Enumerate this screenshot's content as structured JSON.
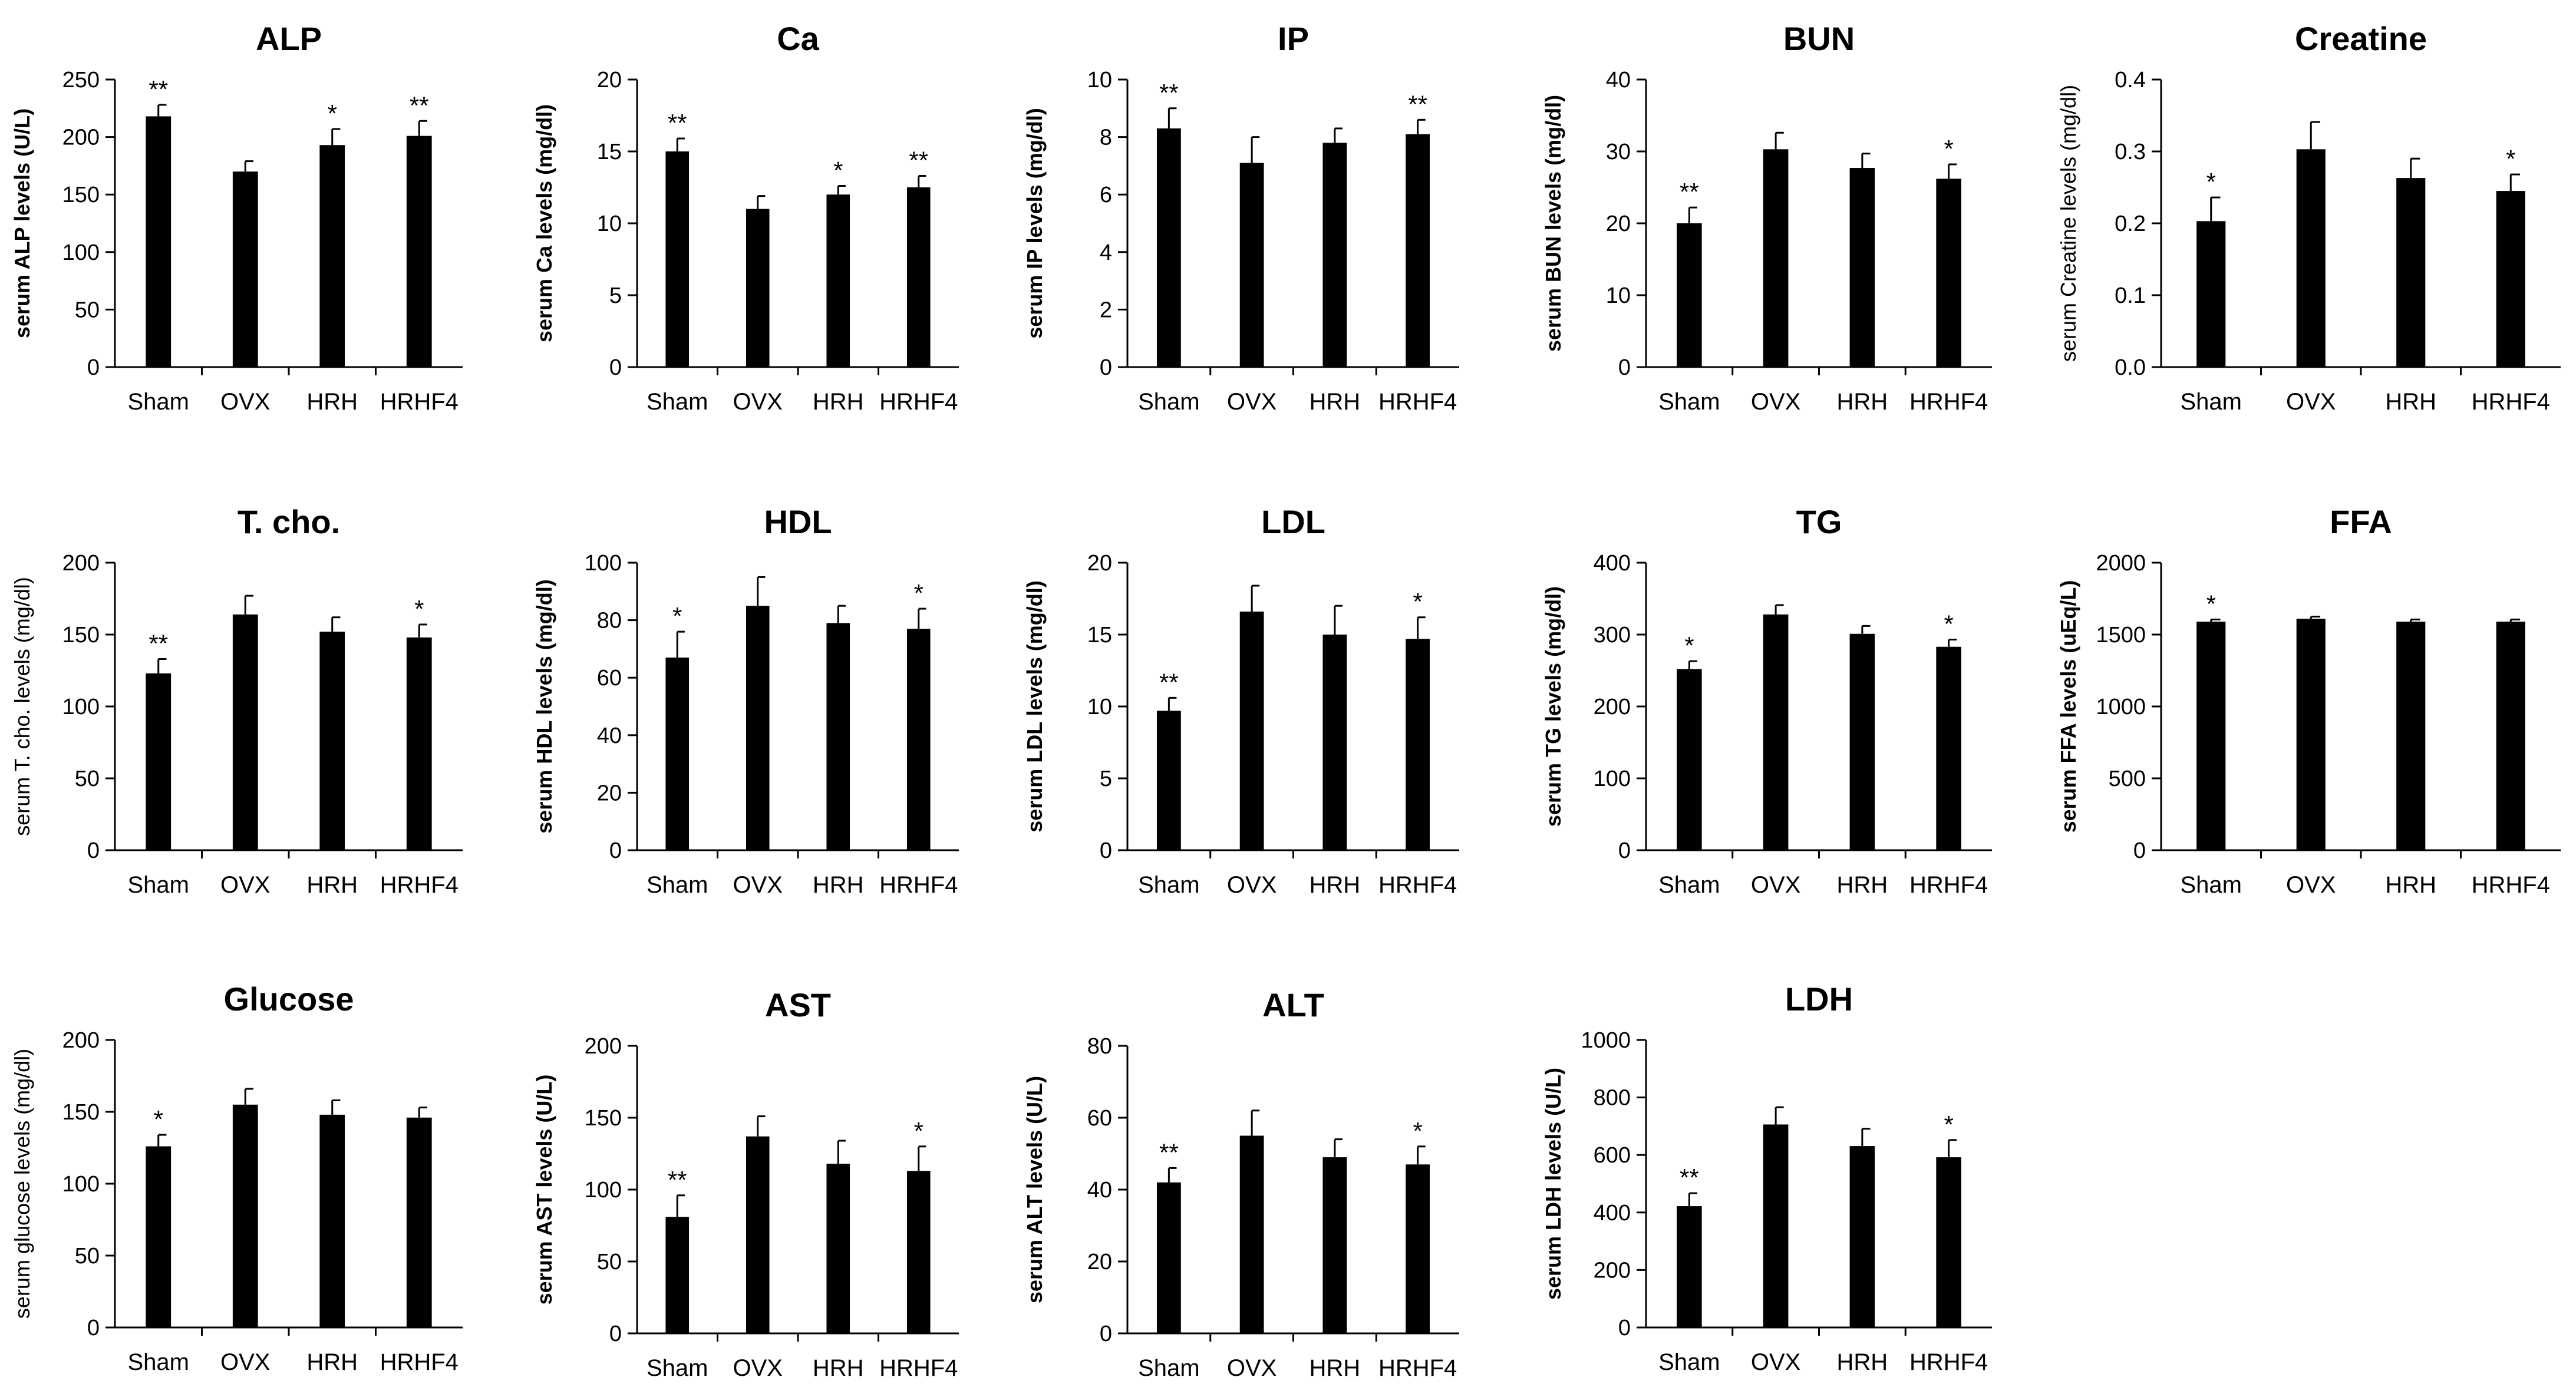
{
  "chart_data": [
    {
      "type": "bar",
      "title": "ALP",
      "ylabel": "serum ALP levels (U/L)",
      "categories": [
        "Sham",
        "OVX",
        "HRH",
        "HRHF4"
      ],
      "values": [
        218,
        170,
        193,
        201
      ],
      "errors": [
        10,
        9,
        14,
        13
      ],
      "significance": [
        "**",
        "",
        "*",
        "**"
      ],
      "ylim": [
        0,
        250
      ],
      "yticks": [
        "0",
        "50",
        "100",
        "150",
        "200",
        "250"
      ],
      "bar_color": "#000000"
    },
    {
      "type": "bar",
      "title": "Ca",
      "ylabel": "serum Ca levels (mg/dl)",
      "categories": [
        "Sham",
        "OVX",
        "HRH",
        "HRHF4"
      ],
      "values": [
        15.0,
        11.0,
        12.0,
        12.5
      ],
      "errors": [
        0.9,
        0.9,
        0.6,
        0.8
      ],
      "significance": [
        "**",
        "",
        "*",
        "**"
      ],
      "ylim": [
        0,
        20
      ],
      "yticks": [
        "0",
        "5",
        "10",
        "15",
        "20"
      ],
      "bar_color": "#000000"
    },
    {
      "type": "bar",
      "title": "IP",
      "ylabel": "serum IP levels (mg/dl)",
      "categories": [
        "Sham",
        "OVX",
        "HRH",
        "HRHF4"
      ],
      "values": [
        8.3,
        7.1,
        7.8,
        8.1
      ],
      "errors": [
        0.7,
        0.9,
        0.5,
        0.5
      ],
      "significance": [
        "**",
        "",
        "",
        "**"
      ],
      "ylim": [
        0,
        10
      ],
      "yticks": [
        "0",
        "2",
        "4",
        "6",
        "8",
        "10"
      ],
      "bar_color": "#000000"
    },
    {
      "type": "bar",
      "title": "BUN",
      "ylabel": "serum BUN levels (mg/dl)",
      "categories": [
        "Sham",
        "OVX",
        "HRH",
        "HRHF4"
      ],
      "values": [
        20.0,
        30.3,
        27.7,
        26.2
      ],
      "errors": [
        2.2,
        2.3,
        2.0,
        2.0
      ],
      "significance": [
        "**",
        "",
        "",
        "*"
      ],
      "ylim": [
        0,
        40
      ],
      "yticks": [
        "0",
        "10",
        "20",
        "30",
        "40"
      ],
      "bar_color": "#000000"
    },
    {
      "type": "bar",
      "title": "Creatine",
      "ylabel": "serum Creatine levels (mg/dl)",
      "categories": [
        "Sham",
        "OVX",
        "HRH",
        "HRHF4"
      ],
      "values": [
        0.203,
        0.303,
        0.263,
        0.245
      ],
      "errors": [
        0.033,
        0.038,
        0.027,
        0.023
      ],
      "significance": [
        "*",
        "",
        "",
        "*"
      ],
      "ylim": [
        0,
        0.4
      ],
      "yticks": [
        "0.0",
        "0.1",
        "0.2",
        "0.3",
        "0.4"
      ],
      "bar_color": "#000000"
    },
    {
      "type": "bar",
      "title": "T. cho.",
      "ylabel": "serum T. cho. levels (mg/dl)",
      "categories": [
        "Sham",
        "OVX",
        "HRH",
        "HRHF4"
      ],
      "values": [
        123,
        164,
        152,
        148
      ],
      "errors": [
        10,
        13,
        10,
        9
      ],
      "significance": [
        "**",
        "",
        "",
        "*"
      ],
      "ylim": [
        0,
        200
      ],
      "yticks": [
        "0",
        "50",
        "100",
        "150",
        "200"
      ],
      "bar_color": "#000000"
    },
    {
      "type": "bar",
      "title": "HDL",
      "ylabel": "serum HDL levels (mg/dl)",
      "categories": [
        "Sham",
        "OVX",
        "HRH",
        "HRHF4"
      ],
      "values": [
        67,
        85,
        79,
        77
      ],
      "errors": [
        9,
        10,
        6,
        7
      ],
      "significance": [
        "*",
        "",
        "",
        "*"
      ],
      "ylim": [
        0,
        100
      ],
      "yticks": [
        "0",
        "20",
        "40",
        "60",
        "80",
        "100"
      ],
      "bar_color": "#000000"
    },
    {
      "type": "bar",
      "title": "LDL",
      "ylabel": "serum LDL levels (mg/dl)",
      "categories": [
        "Sham",
        "OVX",
        "HRH",
        "HRHF4"
      ],
      "values": [
        9.7,
        16.6,
        15.0,
        14.7
      ],
      "errors": [
        0.9,
        1.8,
        2.0,
        1.5
      ],
      "significance": [
        "**",
        "",
        "",
        "*"
      ],
      "ylim": [
        0,
        20
      ],
      "yticks": [
        "0",
        "5",
        "10",
        "15",
        "20"
      ],
      "bar_color": "#000000"
    },
    {
      "type": "bar",
      "title": "TG",
      "ylabel": "serum TG levels (mg/dl)",
      "categories": [
        "Sham",
        "OVX",
        "HRH",
        "HRHF4"
      ],
      "values": [
        252,
        328,
        301,
        283
      ],
      "errors": [
        11,
        13,
        11,
        10
      ],
      "significance": [
        "*",
        "",
        "",
        "*"
      ],
      "ylim": [
        0,
        400
      ],
      "yticks": [
        "0",
        "100",
        "200",
        "300",
        "400"
      ],
      "bar_color": "#000000"
    },
    {
      "type": "bar",
      "title": "FFA",
      "ylabel": "serum FFA levels (uEq/L)",
      "categories": [
        "Sham",
        "OVX",
        "HRH",
        "HRHF4"
      ],
      "values": [
        1590,
        1610,
        1590,
        1590
      ],
      "errors": [
        15,
        15,
        15,
        15
      ],
      "significance": [
        "*",
        "",
        "",
        ""
      ],
      "ylim": [
        0,
        2000
      ],
      "yticks": [
        "0",
        "500",
        "1000",
        "1500",
        "2000"
      ],
      "bar_color": "#000000"
    },
    {
      "type": "bar",
      "title": "Glucose",
      "ylabel": "serum glucose levels (mg/dl)",
      "categories": [
        "Sham",
        "OVX",
        "HRH",
        "HRHF4"
      ],
      "values": [
        126,
        155,
        148,
        146
      ],
      "errors": [
        8,
        11,
        10,
        7
      ],
      "significance": [
        "*",
        "",
        "",
        ""
      ],
      "ylim": [
        0,
        200
      ],
      "yticks": [
        "0",
        "50",
        "100",
        "150",
        "200"
      ],
      "bar_color": "#000000"
    },
    {
      "type": "bar",
      "title": "AST",
      "ylabel": "serum AST levels (U/L)",
      "categories": [
        "Sham",
        "OVX",
        "HRH",
        "HRHF4"
      ],
      "values": [
        81,
        137,
        118,
        113
      ],
      "errors": [
        15,
        14,
        16,
        17
      ],
      "significance": [
        "**",
        "",
        "",
        "*"
      ],
      "ylim": [
        0,
        200
      ],
      "yticks": [
        "0",
        "50",
        "100",
        "150",
        "200"
      ],
      "bar_color": "#000000"
    },
    {
      "type": "bar",
      "title": "ALT",
      "ylabel": "serum ALT levels (U/L)",
      "categories": [
        "Sham",
        "OVX",
        "HRH",
        "HRHF4"
      ],
      "values": [
        42,
        55,
        49,
        47
      ],
      "errors": [
        4,
        7,
        5,
        5
      ],
      "significance": [
        "**",
        "",
        "",
        "*"
      ],
      "ylim": [
        0,
        80
      ],
      "yticks": [
        "0",
        "20",
        "40",
        "60",
        "80"
      ],
      "bar_color": "#000000"
    },
    {
      "type": "bar",
      "title": "LDH",
      "ylabel": "serum LDH levels (U/L)",
      "categories": [
        "Sham",
        "OVX",
        "HRH",
        "HRHF4"
      ],
      "values": [
        422,
        706,
        631,
        592
      ],
      "errors": [
        45,
        60,
        60,
        60
      ],
      "significance": [
        "**",
        "",
        "",
        "*"
      ],
      "ylim": [
        0,
        1000
      ],
      "yticks": [
        "0",
        "200",
        "400",
        "600",
        "800",
        "1000"
      ],
      "bar_color": "#000000"
    }
  ]
}
